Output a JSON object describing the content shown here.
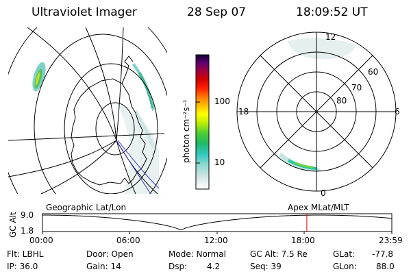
{
  "header": {
    "instrument": "Ultraviolet Imager",
    "date": "28 Sep 07",
    "time": "18:09:52 UT"
  },
  "colorbar": {
    "label": "photon cm⁻²s⁻¹",
    "ticks": [
      "100",
      "10"
    ]
  },
  "polar_plot": {
    "mlt_labels": [
      "12",
      "18",
      "6",
      "0"
    ],
    "lat_labels": [
      "60",
      "70",
      "80"
    ]
  },
  "timeline": {
    "left_title": "Geographic Lat/Lon",
    "right_title": "Apex MLat/MLT",
    "ylabel": "GC Alt",
    "y_ticks": [
      "9.0",
      "1.8"
    ],
    "x_ticks": [
      "00:00",
      "06:00",
      "12:00",
      "18:00",
      "23:59"
    ],
    "current_time_hours": 18.16,
    "marker_color": "#e00000"
  },
  "info": {
    "flt": "Flt: LBHL",
    "ip": "IP: 36.0",
    "door": "Door: Open",
    "gain": "Gain: 14",
    "mode": "Mode: Normal",
    "dsp_label": "Dsp:",
    "dsp_value": "4.2",
    "gc_alt": "GC Alt: 7.5 Re",
    "seq": "Seq: 39",
    "glat_label": "GLat:",
    "glat_value": "-77.8",
    "glon_label": "GLon:",
    "glon_value": "88.0"
  }
}
